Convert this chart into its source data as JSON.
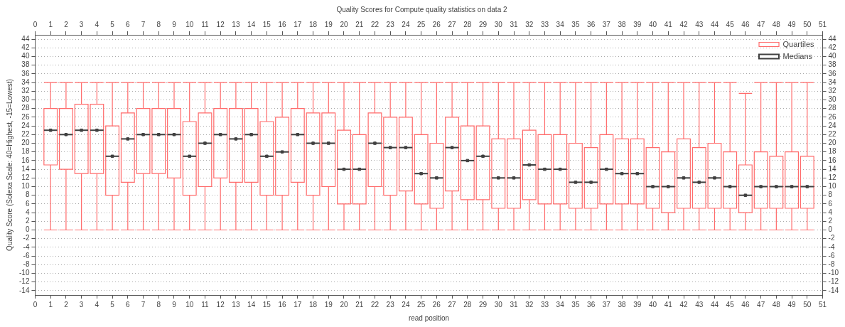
{
  "chart_data": {
    "type": "box",
    "title": "Quality Scores for Compute quality statistics on data 2",
    "xlabel": "read position",
    "ylabel": "Quality Score (Solexa Scale: 40=Highest, -15=Lowest)",
    "x": [
      1,
      2,
      3,
      4,
      5,
      6,
      7,
      8,
      9,
      10,
      11,
      12,
      13,
      14,
      15,
      16,
      17,
      18,
      19,
      20,
      21,
      22,
      23,
      24,
      25,
      26,
      27,
      28,
      29,
      30,
      31,
      32,
      33,
      34,
      35,
      36,
      37,
      38,
      39,
      40,
      41,
      42,
      43,
      44,
      45,
      46,
      47,
      48,
      49,
      50
    ],
    "series": [
      {
        "name": "Quartiles",
        "color": "#ff6b6b",
        "boxes": [
          {
            "low": 0,
            "q1": 15,
            "median": 23,
            "q3": 28,
            "high": 34
          },
          {
            "low": 0,
            "q1": 14,
            "median": 22,
            "q3": 28,
            "high": 34
          },
          {
            "low": 0,
            "q1": 13,
            "median": 23,
            "q3": 29,
            "high": 34
          },
          {
            "low": 0,
            "q1": 13,
            "median": 23,
            "q3": 29,
            "high": 34
          },
          {
            "low": 0,
            "q1": 8,
            "median": 17,
            "q3": 24,
            "high": 34
          },
          {
            "low": 0,
            "q1": 11,
            "median": 21,
            "q3": 27,
            "high": 34
          },
          {
            "low": 0,
            "q1": 13,
            "median": 22,
            "q3": 28,
            "high": 34
          },
          {
            "low": 0,
            "q1": 13,
            "median": 22,
            "q3": 28,
            "high": 34
          },
          {
            "low": 0,
            "q1": 12,
            "median": 22,
            "q3": 28,
            "high": 34
          },
          {
            "low": 0,
            "q1": 8,
            "median": 17,
            "q3": 25,
            "high": 34
          },
          {
            "low": 0,
            "q1": 10,
            "median": 20,
            "q3": 27,
            "high": 34
          },
          {
            "low": 0,
            "q1": 12,
            "median": 22,
            "q3": 28,
            "high": 34
          },
          {
            "low": 0,
            "q1": 11,
            "median": 21,
            "q3": 28,
            "high": 34
          },
          {
            "low": 0,
            "q1": 11,
            "median": 22,
            "q3": 28,
            "high": 34
          },
          {
            "low": 0,
            "q1": 8,
            "median": 17,
            "q3": 25,
            "high": 34
          },
          {
            "low": 0,
            "q1": 8,
            "median": 18,
            "q3": 26,
            "high": 34
          },
          {
            "low": 0,
            "q1": 11,
            "median": 22,
            "q3": 28,
            "high": 34
          },
          {
            "low": 0,
            "q1": 8,
            "median": 20,
            "q3": 27,
            "high": 34
          },
          {
            "low": 0,
            "q1": 10,
            "median": 20,
            "q3": 27,
            "high": 34
          },
          {
            "low": 0,
            "q1": 6,
            "median": 14,
            "q3": 23,
            "high": 34
          },
          {
            "low": 0,
            "q1": 6,
            "median": 14,
            "q3": 22,
            "high": 34
          },
          {
            "low": 0,
            "q1": 10,
            "median": 20,
            "q3": 27,
            "high": 34
          },
          {
            "low": 0,
            "q1": 8,
            "median": 19,
            "q3": 26,
            "high": 34
          },
          {
            "low": 0,
            "q1": 9,
            "median": 19,
            "q3": 26,
            "high": 34
          },
          {
            "low": 0,
            "q1": 6,
            "median": 13,
            "q3": 22,
            "high": 34
          },
          {
            "low": 0,
            "q1": 5,
            "median": 12,
            "q3": 20,
            "high": 34
          },
          {
            "low": 0,
            "q1": 9,
            "median": 19,
            "q3": 26,
            "high": 34
          },
          {
            "low": 0,
            "q1": 7,
            "median": 16,
            "q3": 24,
            "high": 34
          },
          {
            "low": 0,
            "q1": 7,
            "median": 17,
            "q3": 24,
            "high": 34
          },
          {
            "low": 0,
            "q1": 5,
            "median": 12,
            "q3": 21,
            "high": 34
          },
          {
            "low": 0,
            "q1": 5,
            "median": 12,
            "q3": 21,
            "high": 34
          },
          {
            "low": 0,
            "q1": 7,
            "median": 15,
            "q3": 23,
            "high": 34
          },
          {
            "low": 0,
            "q1": 6,
            "median": 14,
            "q3": 22,
            "high": 34
          },
          {
            "low": 0,
            "q1": 6,
            "median": 14,
            "q3": 22,
            "high": 34
          },
          {
            "low": 0,
            "q1": 5,
            "median": 11,
            "q3": 20,
            "high": 34
          },
          {
            "low": 0,
            "q1": 5,
            "median": 11,
            "q3": 19,
            "high": 34
          },
          {
            "low": 0,
            "q1": 6,
            "median": 14,
            "q3": 22,
            "high": 34
          },
          {
            "low": 0,
            "q1": 6,
            "median": 13,
            "q3": 21,
            "high": 34
          },
          {
            "low": 0,
            "q1": 6,
            "median": 13,
            "q3": 21,
            "high": 34
          },
          {
            "low": 0,
            "q1": 5,
            "median": 10,
            "q3": 19,
            "high": 34
          },
          {
            "low": 0,
            "q1": 4,
            "median": 10,
            "q3": 18,
            "high": 34
          },
          {
            "low": 0,
            "q1": 5,
            "median": 12,
            "q3": 21,
            "high": 34
          },
          {
            "low": 0,
            "q1": 5,
            "median": 11,
            "q3": 19,
            "high": 34
          },
          {
            "low": 0,
            "q1": 5,
            "median": 12,
            "q3": 20,
            "high": 34
          },
          {
            "low": 0,
            "q1": 5,
            "median": 10,
            "q3": 18,
            "high": 34
          },
          {
            "low": 0,
            "q1": 4,
            "median": 8,
            "q3": 15,
            "high": 31.5
          },
          {
            "low": 0,
            "q1": 5,
            "median": 10,
            "q3": 18,
            "high": 34
          },
          {
            "low": 0,
            "q1": 5,
            "median": 10,
            "q3": 17,
            "high": 34
          },
          {
            "low": 0,
            "q1": 5,
            "median": 10,
            "q3": 18,
            "high": 34
          },
          {
            "low": 0,
            "q1": 5,
            "median": 10,
            "q3": 17,
            "high": 34
          }
        ]
      },
      {
        "name": "Medians",
        "type": "scatter",
        "color": "#404040",
        "values": [
          23,
          22,
          23,
          23,
          17,
          21,
          22,
          22,
          22,
          17,
          20,
          22,
          21,
          22,
          17,
          18,
          22,
          20,
          20,
          14,
          14,
          20,
          19,
          19,
          13,
          12,
          19,
          16,
          17,
          12,
          12,
          15,
          14,
          14,
          11,
          11,
          14,
          13,
          13,
          10,
          10,
          12,
          11,
          12,
          10,
          8,
          10,
          10,
          10,
          10
        ]
      }
    ],
    "xlim": [
      0,
      51
    ],
    "xticks": [
      0,
      1,
      2,
      3,
      4,
      5,
      6,
      7,
      8,
      9,
      10,
      11,
      12,
      13,
      14,
      15,
      16,
      17,
      18,
      19,
      20,
      21,
      22,
      23,
      24,
      25,
      26,
      27,
      28,
      29,
      30,
      31,
      32,
      33,
      34,
      35,
      36,
      37,
      38,
      39,
      40,
      41,
      42,
      43,
      44,
      45,
      46,
      47,
      48,
      49,
      50,
      51
    ],
    "x2lim": [
      0,
      51
    ],
    "x2ticks": [
      0,
      1,
      2,
      3,
      4,
      5,
      6,
      7,
      8,
      9,
      10,
      11,
      12,
      13,
      14,
      15,
      16,
      17,
      18,
      19,
      20,
      21,
      22,
      23,
      24,
      25,
      26,
      27,
      28,
      29,
      30,
      31,
      32,
      33,
      34,
      35,
      36,
      37,
      38,
      39,
      40,
      41,
      42,
      43,
      44,
      45,
      46,
      47,
      48,
      49,
      50,
      51
    ],
    "ylim": [
      -15,
      45
    ],
    "yticks": [
      -14,
      -12,
      -10,
      -8,
      -6,
      -4,
      -2,
      0,
      2,
      4,
      6,
      8,
      10,
      12,
      14,
      16,
      18,
      20,
      22,
      24,
      26,
      28,
      30,
      32,
      34,
      36,
      38,
      40,
      42,
      44
    ],
    "y2lim": [
      -15,
      45
    ],
    "y2ticks": [
      -14,
      -12,
      -10,
      -8,
      -6,
      -4,
      -2,
      0,
      2,
      4,
      6,
      8,
      10,
      12,
      14,
      16,
      18,
      20,
      22,
      24,
      26,
      28,
      30,
      32,
      34,
      36,
      38,
      40,
      42,
      44
    ],
    "grid": "y",
    "legend": "top right"
  }
}
